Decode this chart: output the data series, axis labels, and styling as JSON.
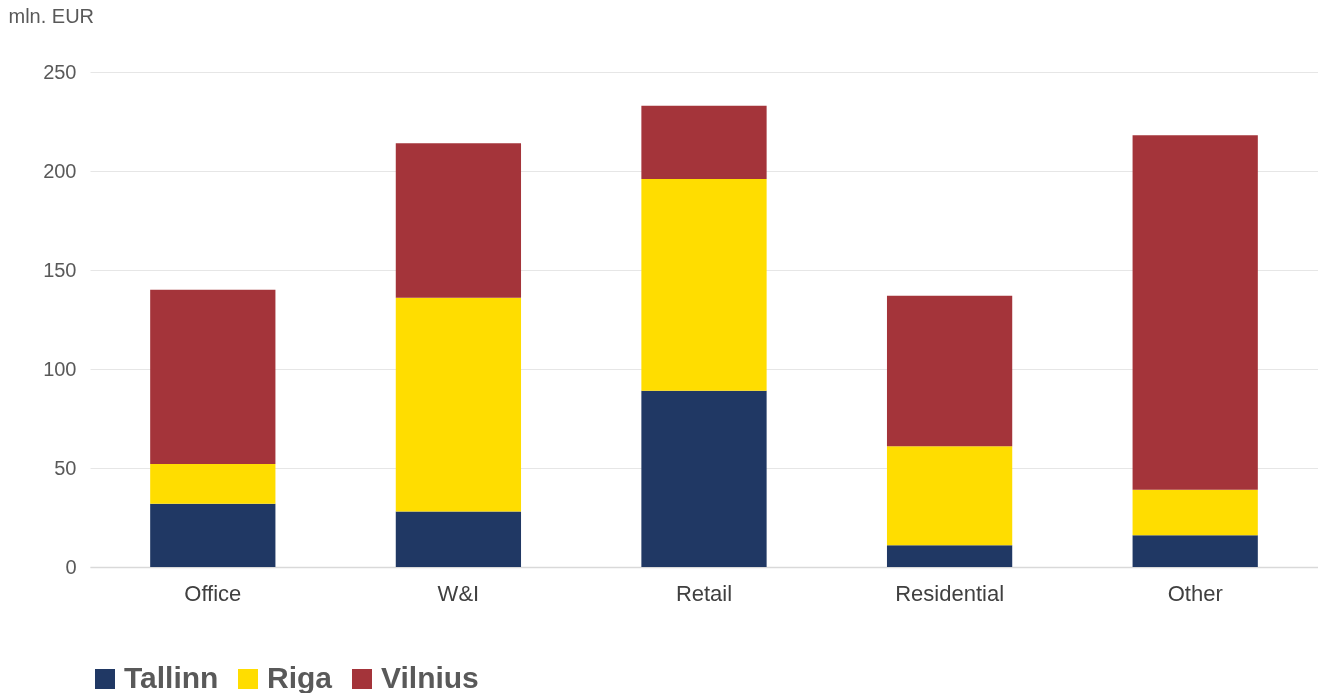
{
  "chart_data": {
    "type": "bar",
    "ylabel": "mln. EUR",
    "categories": [
      "Office",
      "W&I",
      "Retail",
      "Residential",
      "Other"
    ],
    "series": [
      {
        "name": "Tallinn",
        "color": "#203864",
        "values": [
          32,
          28,
          89,
          11,
          16
        ]
      },
      {
        "name": "Riga",
        "color": "#ffdd00",
        "values": [
          20,
          108,
          107,
          50,
          23
        ]
      },
      {
        "name": "Vilnius",
        "color": "#a4343a",
        "values": [
          88,
          78,
          37,
          76,
          179
        ]
      }
    ],
    "stacked": true,
    "ylim": [
      0,
      250
    ],
    "yticks": [
      0,
      50,
      100,
      150,
      200,
      250
    ],
    "grid": "y",
    "legend": "bottom"
  }
}
